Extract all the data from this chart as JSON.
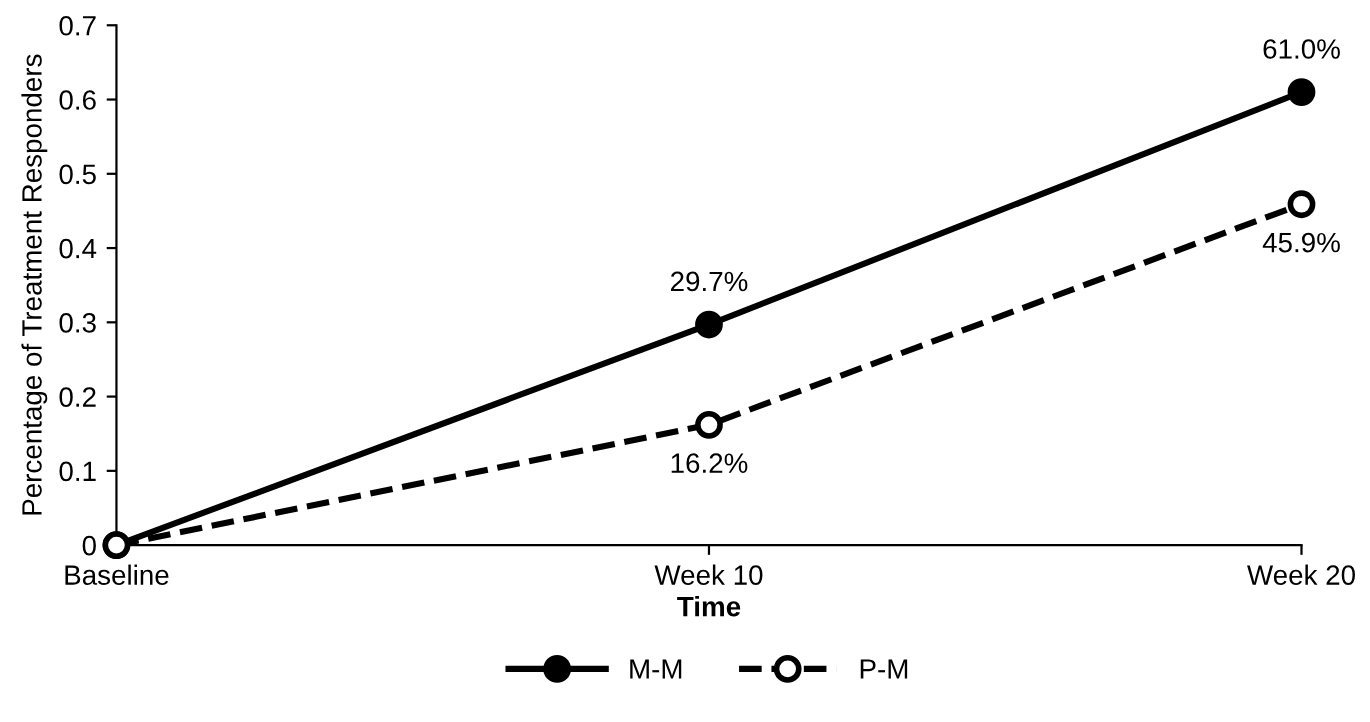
{
  "chart_data": {
    "type": "line",
    "xlabel": "Time",
    "ylabel": "Percentage of Treatment Responders",
    "categories": [
      "Baseline",
      "Week 10",
      "Week 20"
    ],
    "series": [
      {
        "name": "M-M",
        "color": "#000000",
        "values": [
          0,
          0.297,
          0.61
        ],
        "line_style": "solid",
        "value_labels": [
          null,
          "29.7%",
          "61.0%"
        ]
      },
      {
        "name": "P-M",
        "color": "#000000",
        "values": [
          0,
          0.162,
          0.459
        ],
        "line_style": "dashed",
        "value_labels": [
          null,
          "16.2%",
          "45.9%"
        ]
      }
    ],
    "ylim": [
      0,
      0.7
    ],
    "yticks": [
      0,
      0.1,
      0.2,
      0.3,
      0.4,
      0.5,
      0.6,
      0.7
    ],
    "grid": false,
    "legend": "bottom",
    "marker": "circle"
  }
}
